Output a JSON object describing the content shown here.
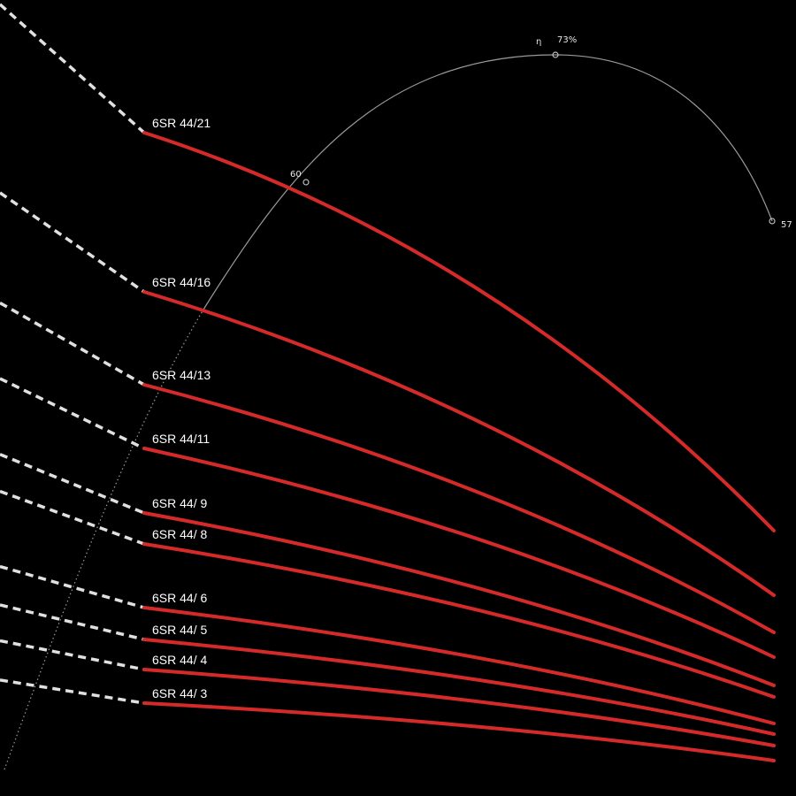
{
  "chart_data": {
    "type": "line",
    "title": "",
    "xlabel": "",
    "ylabel": "",
    "grid": false,
    "colors": {
      "background": "#000000",
      "curve": "#d42a2a",
      "extension": "#e0e0e0",
      "efficiency": "#9a9a9a",
      "text": "#ffffff"
    },
    "series": [
      {
        "name": "6SR 44/21",
        "start": [
          163,
          150
        ],
        "end": [
          875,
          600
        ],
        "bend": 98
      },
      {
        "name": "6SR 44/16",
        "start": [
          163,
          330
        ],
        "end": [
          875,
          673
        ],
        "bend": 52
      },
      {
        "name": "6SR 44/13",
        "start": [
          163,
          435
        ],
        "end": [
          875,
          715
        ],
        "bend": 38
      },
      {
        "name": "6SR 44/11",
        "start": [
          163,
          507
        ],
        "end": [
          875,
          743
        ],
        "bend": 32
      },
      {
        "name": "6SR 44/ 9",
        "start": [
          163,
          580
        ],
        "end": [
          875,
          775
        ],
        "bend": 26
      },
      {
        "name": "6SR 44/ 8",
        "start": [
          163,
          615
        ],
        "end": [
          875,
          788
        ],
        "bend": 24
      },
      {
        "name": "6SR 44/ 6",
        "start": [
          163,
          687
        ],
        "end": [
          875,
          818
        ],
        "bend": 18
      },
      {
        "name": "6SR 44/ 5",
        "start": [
          163,
          723
        ],
        "end": [
          875,
          830
        ],
        "bend": 16
      },
      {
        "name": "6SR 44/ 4",
        "start": [
          163,
          757
        ],
        "end": [
          875,
          843
        ],
        "bend": 14
      },
      {
        "name": "6SR 44/ 3",
        "start": [
          163,
          795
        ],
        "end": [
          875,
          860
        ],
        "bend": 12
      }
    ],
    "efficiency_curve": {
      "symbol": "η",
      "points": [
        {
          "label": "60",
          "at": [
            346,
            206
          ]
        },
        {
          "label": "73%",
          "at": [
            628,
            62
          ]
        },
        {
          "label": "57",
          "at": [
            873,
            250
          ]
        }
      ]
    }
  }
}
